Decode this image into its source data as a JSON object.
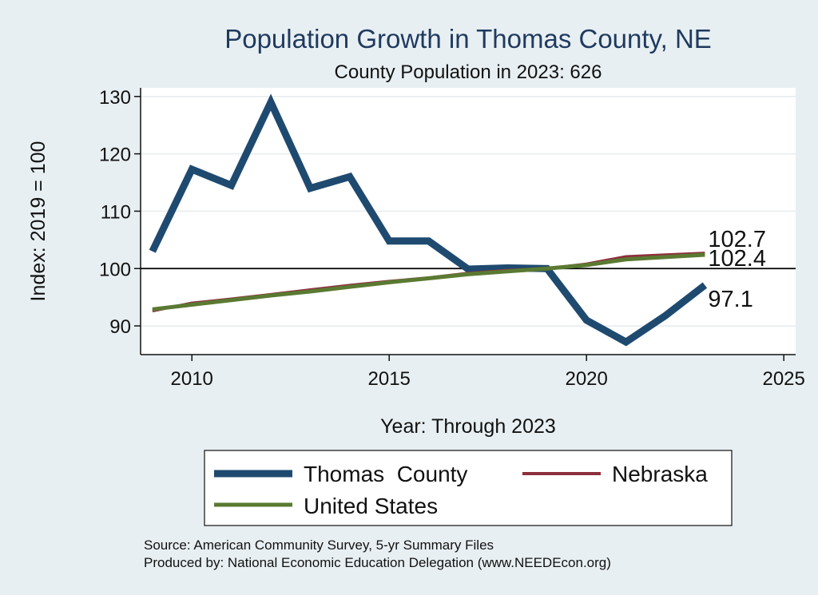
{
  "chart_data": {
    "type": "line",
    "title": "Population Growth in Thomas County, NE",
    "subtitle": "County Population in 2023: 626",
    "xlabel": "Year: Through 2023",
    "ylabel": "Index: 2019 = 100",
    "xlim": [
      2008.7,
      2025.3
    ],
    "ylim": [
      85,
      131.5
    ],
    "xticks": [
      2010,
      2015,
      2020,
      2025
    ],
    "yticks": [
      90,
      100,
      110,
      120,
      130
    ],
    "grid": true,
    "reference_line": 100,
    "x": [
      2009,
      2010,
      2011,
      2012,
      2013,
      2014,
      2015,
      2016,
      2017,
      2018,
      2019,
      2020,
      2021,
      2022,
      2023
    ],
    "series": [
      {
        "name": "Thomas  County",
        "color": "#1f4a70",
        "values": [
          103.0,
          117.3,
          114.5,
          129.0,
          114.0,
          116.0,
          104.8,
          104.8,
          99.9,
          100.1,
          100.0,
          91.0,
          87.2,
          91.8,
          97.1
        ],
        "end_label": "97.1"
      },
      {
        "name": "Nebraska",
        "color": "#8e2f3c",
        "values": [
          92.6,
          94.0,
          94.7,
          95.5,
          96.3,
          97.1,
          97.8,
          98.4,
          99.2,
          99.7,
          100.0,
          100.8,
          102.1,
          102.4,
          102.7
        ],
        "end_label": "102.7"
      },
      {
        "name": "United States",
        "color": "#5a7a32",
        "values": [
          92.9,
          93.7,
          94.5,
          95.3,
          96.0,
          96.8,
          97.6,
          98.3,
          99.0,
          99.5,
          100.0,
          100.6,
          101.6,
          102.0,
          102.4
        ],
        "end_label": "102.4"
      }
    ],
    "legend": {
      "placement": "bottom",
      "entries": [
        "Thomas  County",
        "Nebraska",
        "United States"
      ]
    },
    "notes": [
      "Source: American Community Survey, 5-yr Summary Files",
      "Produced by: National Economic Education Delegation (www.NEEDEcon.org)"
    ]
  }
}
